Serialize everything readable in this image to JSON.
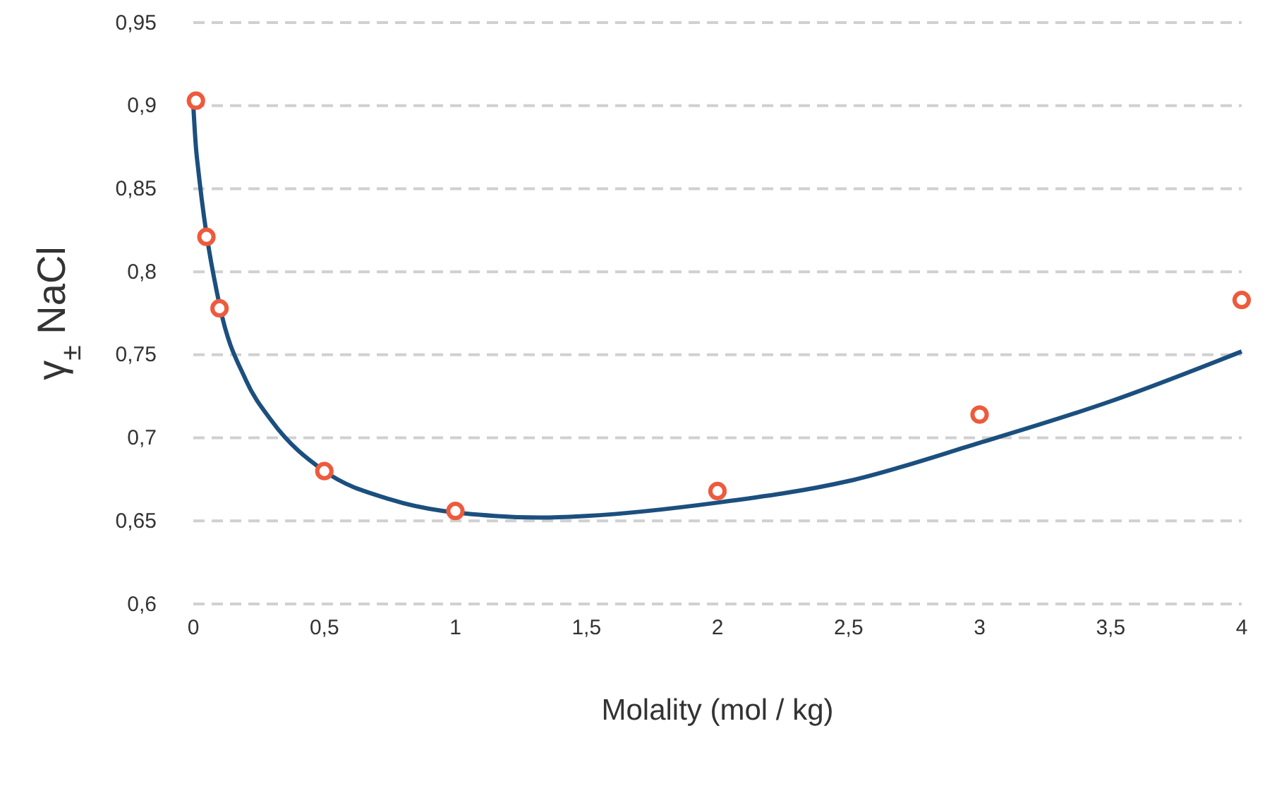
{
  "chart_data": {
    "type": "scatter",
    "xlabel": "Molality (mol / kg)",
    "ylabel": "γ$_{±}$ NaCl",
    "xlim": [
      0,
      4
    ],
    "ylim": [
      0.6,
      0.95
    ],
    "xticks": [
      0,
      {
        "value": 0.5,
        "label": "0,5"
      },
      1,
      {
        "value": 1.5,
        "label": "1,5"
      },
      2,
      {
        "value": 2.5,
        "label": "2,5"
      },
      3,
      {
        "value": 3.5,
        "label": "3,5"
      },
      4
    ],
    "yticks": [
      {
        "value": 0.6,
        "label": "0,6"
      },
      {
        "value": 0.65,
        "label": "0,65"
      },
      {
        "value": 0.7,
        "label": "0,7"
      },
      {
        "value": 0.75,
        "label": "0,75"
      },
      {
        "value": 0.8,
        "label": "0,8"
      },
      {
        "value": 0.85,
        "label": "0,85"
      },
      {
        "value": 0.9,
        "label": "0,9"
      },
      {
        "value": 0.95,
        "label": "0,95"
      }
    ],
    "grid": "y",
    "marker": "circle",
    "series": [
      {
        "type": "line",
        "color": "#1b4f7e",
        "line_style": "solid",
        "marker": "none",
        "x": [
          0,
          0.01,
          0.02,
          0.1,
          0.2,
          0.3,
          0.5,
          0.75,
          1.15,
          1.33,
          1.5,
          2,
          2.5,
          3,
          3.5,
          4
        ],
        "values": [
          0.9,
          0.875,
          0.86,
          0.78,
          0.735,
          0.71,
          0.68,
          0.663,
          0.653,
          0.652,
          0.653,
          0.661,
          0.674,
          0.697,
          0.722,
          0.752
        ]
      },
      {
        "type": "scatter",
        "color": "#ee5a3c",
        "x": [
          0.01,
          0.05,
          0.1,
          0.5,
          1,
          2,
          3,
          4
        ],
        "values": [
          0.903,
          0.821,
          0.778,
          0.68,
          0.656,
          0.668,
          0.714,
          0.783
        ]
      }
    ]
  }
}
